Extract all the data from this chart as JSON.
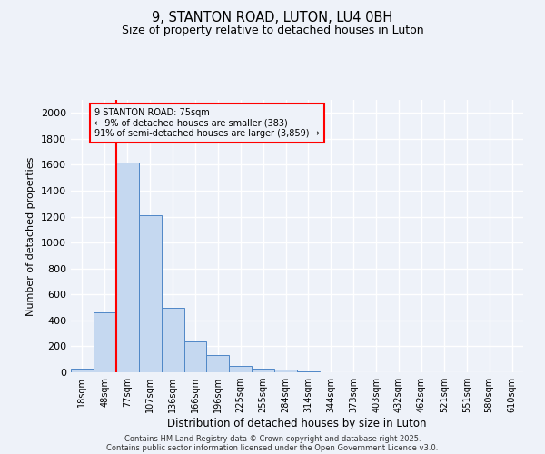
{
  "title1": "9, STANTON ROAD, LUTON, LU4 0BH",
  "title2": "Size of property relative to detached houses in Luton",
  "xlabel": "Distribution of detached houses by size in Luton",
  "ylabel": "Number of detached properties",
  "categories": [
    "18sqm",
    "48sqm",
    "77sqm",
    "107sqm",
    "136sqm",
    "166sqm",
    "196sqm",
    "225sqm",
    "255sqm",
    "284sqm",
    "314sqm",
    "344sqm",
    "373sqm",
    "403sqm",
    "432sqm",
    "462sqm",
    "521sqm",
    "551sqm",
    "580sqm",
    "610sqm"
  ],
  "values": [
    30,
    460,
    1620,
    1210,
    500,
    240,
    130,
    50,
    30,
    20,
    10,
    0,
    0,
    0,
    0,
    0,
    0,
    0,
    0,
    0
  ],
  "bar_color": "#c5d8f0",
  "bar_edge_color": "#4f87c7",
  "red_line_index": 2,
  "annotation_line1": "9 STANTON ROAD: 75sqm",
  "annotation_line2": "← 9% of detached houses are smaller (383)",
  "annotation_line3": "91% of semi-detached houses are larger (3,859) →",
  "ylim": [
    0,
    2100
  ],
  "yticks": [
    0,
    200,
    400,
    600,
    800,
    1000,
    1200,
    1400,
    1600,
    1800,
    2000
  ],
  "footer1": "Contains HM Land Registry data © Crown copyright and database right 2025.",
  "footer2": "Contains public sector information licensed under the Open Government Licence v3.0.",
  "bg_color": "#eef2f9"
}
